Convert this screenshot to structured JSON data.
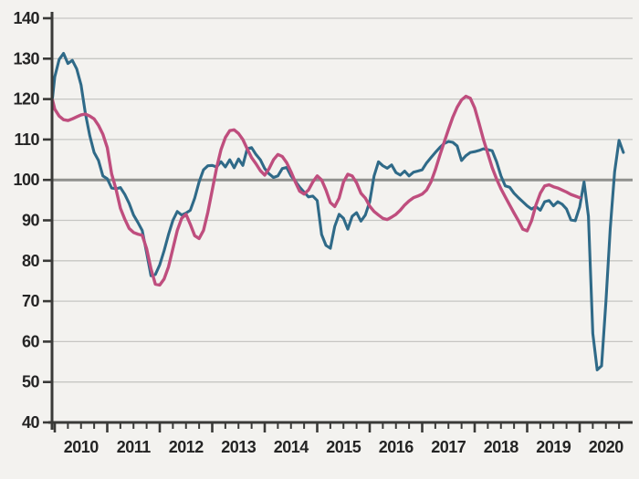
{
  "chart": {
    "title": "",
    "background_color": "#f3f2ef",
    "colors": {
      "grid_line": "#c6c6c3",
      "reference_line": "#8f908d",
      "axis": "#3a3a38",
      "tick_text": "#242424",
      "series_teal": "#2f6a88",
      "series_pink": "#bf4e7e"
    },
    "y_axis": {
      "min": 40,
      "max": 140,
      "step": 10,
      "tick_labels": [
        "140",
        "130",
        "120",
        "110",
        "100",
        "90",
        "80",
        "70",
        "60",
        "50",
        "40"
      ]
    },
    "x_axis": {
      "tick_years": [
        2010,
        2011,
        2012,
        2013,
        2014,
        2015,
        2016,
        2017,
        2018,
        2019,
        2020
      ],
      "minor_ticks": "quarterly",
      "labels": [
        "2010",
        "2011",
        "2012",
        "2013",
        "2014",
        "2015",
        "2016",
        "2017",
        "2018",
        "2019",
        "2020"
      ]
    },
    "chart_data": {
      "type": "line",
      "frequency": "monthly",
      "title": "",
      "xlabel": "",
      "ylabel": "",
      "ylim": [
        40,
        140
      ],
      "xlim_years": [
        2009.92,
        2021.0
      ],
      "grid": true,
      "legend": "none",
      "reference_line_y": 100,
      "series": [
        {
          "name": "series-teal",
          "color": "#2f6a88",
          "start": "2009-12",
          "values": [
            120.3,
            125.5,
            129.8,
            131.3,
            128.8,
            129.6,
            127.5,
            123.5,
            116.5,
            111.0,
            106.8,
            104.8,
            101.0,
            100.3,
            98.0,
            97.8,
            98.1,
            96.4,
            94.2,
            91.3,
            89.5,
            87.5,
            82.0,
            76.3,
            76.6,
            79.0,
            82.5,
            86.5,
            90.0,
            92.2,
            91.3,
            91.8,
            92.5,
            95.5,
            99.5,
            102.5,
            103.5,
            103.6,
            103.2,
            104.5,
            103.2,
            105.0,
            103.0,
            105.2,
            103.6,
            107.7,
            108.0,
            106.3,
            105.0,
            102.8,
            101.5,
            100.6,
            101.0,
            102.8,
            103.1,
            101.0,
            99.7,
            98.2,
            97.0,
            95.8,
            96.0,
            94.9,
            86.5,
            83.8,
            83.1,
            88.5,
            91.5,
            90.5,
            87.8,
            91.0,
            91.9,
            89.8,
            91.3,
            94.6,
            101.0,
            104.5,
            103.5,
            102.9,
            103.7,
            101.8,
            101.2,
            102.2,
            101.0,
            101.9,
            102.2,
            102.5,
            104.2,
            105.5,
            106.8,
            108.0,
            109.0,
            109.5,
            109.3,
            108.4,
            104.8,
            106.0,
            106.8,
            107.0,
            107.3,
            107.7,
            107.5,
            107.2,
            104.5,
            101.0,
            98.5,
            98.2,
            96.7,
            95.6,
            94.6,
            93.6,
            92.8,
            93.4,
            92.5,
            94.6,
            94.9,
            93.6,
            94.6,
            94.0,
            92.8,
            90.1,
            89.9,
            93.3,
            99.5,
            91.0,
            62.0,
            53.0,
            54.0,
            70.0,
            88.0,
            102.0,
            109.8,
            106.8
          ]
        },
        {
          "name": "series-pink",
          "color": "#bf4e7e",
          "start": "2009-12",
          "values": [
            119.8,
            117.5,
            115.8,
            114.9,
            114.7,
            115.1,
            115.6,
            116.1,
            116.3,
            115.8,
            115.1,
            113.5,
            111.3,
            108.0,
            101.5,
            97.7,
            93.0,
            90.3,
            88.0,
            87.0,
            86.6,
            86.3,
            83.0,
            78.0,
            74.2,
            74.0,
            75.5,
            78.5,
            83.0,
            87.5,
            90.5,
            91.5,
            89.0,
            86.2,
            85.5,
            87.5,
            92.0,
            97.5,
            103.0,
            107.5,
            110.5,
            112.2,
            112.4,
            111.5,
            110.0,
            107.7,
            105.5,
            104.0,
            102.3,
            101.2,
            102.8,
            105.0,
            106.3,
            105.8,
            104.3,
            102.0,
            99.5,
            97.2,
            96.5,
            97.5,
            99.5,
            101.0,
            100.0,
            97.5,
            94.4,
            93.4,
            95.5,
            99.5,
            101.4,
            101.0,
            99.3,
            96.7,
            95.5,
            93.5,
            92.2,
            91.3,
            90.5,
            90.2,
            90.8,
            91.5,
            92.5,
            93.8,
            94.8,
            95.6,
            96.0,
            96.5,
            97.5,
            99.5,
            102.5,
            106.0,
            109.3,
            112.5,
            115.5,
            118.0,
            119.8,
            120.7,
            120.2,
            117.8,
            114.0,
            110.0,
            106.5,
            103.0,
            100.2,
            97.8,
            95.8,
            93.8,
            91.8,
            89.9,
            87.8,
            87.4,
            89.9,
            93.8,
            96.7,
            98.5,
            98.8,
            98.3,
            98.0,
            97.5,
            97.0,
            96.4,
            96.0,
            95.6
          ]
        }
      ]
    }
  }
}
